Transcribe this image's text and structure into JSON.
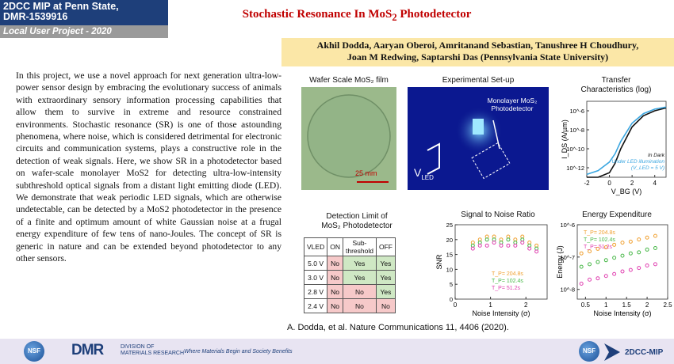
{
  "header": {
    "program": "2DCC MIP at Penn State,",
    "award": "DMR-1539916",
    "project_type": "Local User Project - 2020",
    "title": "Stochastic Resonance In MoS",
    "title_sub": "2",
    "title_end": " Photodetector",
    "authors_line1": "Akhil Dodda, Aaryan Oberoi, Amritanand Sebastian, Tanushree H Choudhury,",
    "authors_line2": "Joan M Redwing, Saptarshi Das (Pennsylvania State University)"
  },
  "body": {
    "paragraph": "In this project, we use a novel approach for next generation ultra-low-power sensor design by embracing the evolutionary success of animals with extraordinary sensory information processing capabilities that allow them to survive in extreme and resource constrained environments. Stochastic resonance (SR) is one of those astounding phenomena, where noise, which is considered detrimental for electronic circuits and communication systems, plays a constructive role in the detection of weak signals. Here, we show SR in a photodetector based on wafer-scale monolayer MoS2 for detecting ultra-low-intensity subthreshold optical signals from a distant light emitting diode (LED). We demonstrate that weak periodic LED signals, which are otherwise undetectable, can be detected by a MoS2 photodetector in the presence of a finite and optimum amount of white Gaussian noise at a frugal energy expenditure of few tens of nano-Joules. The concept of SR is generic in nature and can be extended beyond photodetector to any other sensors."
  },
  "figures": {
    "wafer_label": "Wafer Scale MoS₂ film",
    "wafer_scale": "25 mm",
    "setup_label": "Experimental Set-up",
    "setup_annot": "Monolayer MoS₂ Photodetector",
    "setup_vled": "V",
    "setup_vled_sub": "LED",
    "transfer_label1": "Transfer",
    "transfer_label2": "Characteristics (log)",
    "detection_label1": "Detection Limit of",
    "detection_label2": "MoS₂ Photodetector",
    "snr_label": "Signal to Noise Ratio",
    "energy_label": "Energy Expenditure",
    "citation": "A. Dodda, et al. Nature Communications 11, 4406 (2020)."
  },
  "detection_table": {
    "headers": [
      "VLED",
      "ON",
      "Sub-threshold",
      "OFF"
    ],
    "rows": [
      [
        "5.0 V",
        "No",
        "Yes",
        "Yes"
      ],
      [
        "3.0 V",
        "No",
        "Yes",
        "Yes"
      ],
      [
        "2.8 V",
        "No",
        "No",
        "Yes"
      ],
      [
        "2.4 V",
        "No",
        "No",
        "No"
      ]
    ]
  },
  "footer": {
    "dmr": "DMR",
    "dmr_sub1": "DIVISION OF",
    "dmr_sub2": "MATERIALS RESEARCH",
    "tagline": "Where Materials Begin and Society Benefits",
    "nsf": "NSF",
    "brand": "2DCC-MIP"
  },
  "chart_data": [
    {
      "type": "line",
      "xlabel": "V_BG (V)",
      "ylabel": "I_DS (A/µm)",
      "yscale": "log",
      "xlim": [
        -2,
        5
      ],
      "ylim": [
        1e-13,
        1e-05
      ],
      "xticks": [
        -2,
        0,
        2,
        4
      ],
      "yticks": [
        "10^-12",
        "10^-10",
        "10^-8",
        "10^-6"
      ],
      "annotations": [
        "In Dark",
        "Under LED illumination",
        "(V_LED = 5 V)"
      ],
      "series": [
        {
          "name": "In Dark",
          "color": "#111111",
          "x": [
            -2,
            -1,
            0,
            0.5,
            1,
            2,
            3,
            4,
            5
          ],
          "y": [
            1e-13,
            1e-13,
            3e-13,
            3e-12,
            1e-10,
            2e-08,
            3e-07,
            1e-06,
            2e-06
          ]
        },
        {
          "name": "Under LED illumination",
          "color": "#3aa6e0",
          "x": [
            -2,
            -1,
            0,
            0.5,
            1,
            2,
            3,
            4,
            5
          ],
          "y": [
            2e-13,
            5e-13,
            4e-12,
            3e-11,
            6e-10,
            5e-08,
            5e-07,
            1.5e-06,
            2.5e-06
          ]
        }
      ]
    },
    {
      "type": "scatter",
      "xlabel": "Noise Intensity (σ)",
      "ylabel": "SNR",
      "xlim": [
        0,
        2.6
      ],
      "ylim": [
        0,
        25
      ],
      "xticks": [
        0,
        1,
        2
      ],
      "yticks": [
        0,
        5,
        10,
        15,
        20,
        25
      ],
      "series": [
        {
          "name": "T_P= 204.8s",
          "color": "#f0a030",
          "x": [
            0.5,
            0.7,
            0.9,
            1.1,
            1.3,
            1.5,
            1.7,
            1.9,
            2.1,
            2.3
          ],
          "y": [
            19,
            20,
            21,
            21,
            20,
            21,
            20,
            21,
            19,
            18
          ]
        },
        {
          "name": "T_P= 102.4s",
          "color": "#48b848",
          "x": [
            0.5,
            0.7,
            0.9,
            1.1,
            1.3,
            1.5,
            1.7,
            1.9,
            2.1,
            2.3
          ],
          "y": [
            18,
            19,
            20,
            20,
            19,
            20,
            19,
            20,
            18,
            17
          ]
        },
        {
          "name": "T_P= 51.2s",
          "color": "#e040b0",
          "x": [
            0.5,
            0.7,
            0.9,
            1.1,
            1.3,
            1.5,
            1.7,
            1.9,
            2.1,
            2.3
          ],
          "y": [
            17,
            18,
            18,
            19,
            18,
            18,
            18,
            19,
            17,
            16
          ]
        }
      ]
    },
    {
      "type": "scatter",
      "xlabel": "Noise Intensity (σ)",
      "ylabel": "Energy (J)",
      "yscale": "log",
      "xlim": [
        0.3,
        2.5
      ],
      "ylim": [
        5e-09,
        1e-06
      ],
      "xticks": [
        0.5,
        1,
        1.5,
        2,
        2.5
      ],
      "yticks": [
        "10^-8",
        "10^-7",
        "10^-6"
      ],
      "series": [
        {
          "name": "T_P= 204.8s",
          "color": "#f0a030",
          "x": [
            0.4,
            0.6,
            0.8,
            1.0,
            1.2,
            1.4,
            1.6,
            1.8,
            2.0,
            2.2
          ],
          "y": [
            1.3e-07,
            1.5e-07,
            1.8e-07,
            2e-07,
            2.4e-07,
            2.8e-07,
            3e-07,
            3.5e-07,
            4e-07,
            4.5e-07
          ]
        },
        {
          "name": "T_P= 102.4s",
          "color": "#48b848",
          "x": [
            0.4,
            0.6,
            0.8,
            1.0,
            1.2,
            1.4,
            1.6,
            1.8,
            2.0,
            2.2
          ],
          "y": [
            5e-08,
            6e-08,
            7e-08,
            8e-08,
            9.5e-08,
            1.1e-07,
            1.3e-07,
            1.4e-07,
            1.7e-07,
            1.9e-07
          ]
        },
        {
          "name": "T_P= 51.2s",
          "color": "#e040b0",
          "x": [
            0.4,
            0.6,
            0.8,
            1.0,
            1.2,
            1.4,
            1.6,
            1.8,
            2.0,
            2.2
          ],
          "y": [
            1.5e-08,
            2e-08,
            2.2e-08,
            2.6e-08,
            3e-08,
            3.6e-08,
            4e-08,
            4.6e-08,
            5.5e-08,
            6e-08
          ]
        }
      ]
    }
  ]
}
